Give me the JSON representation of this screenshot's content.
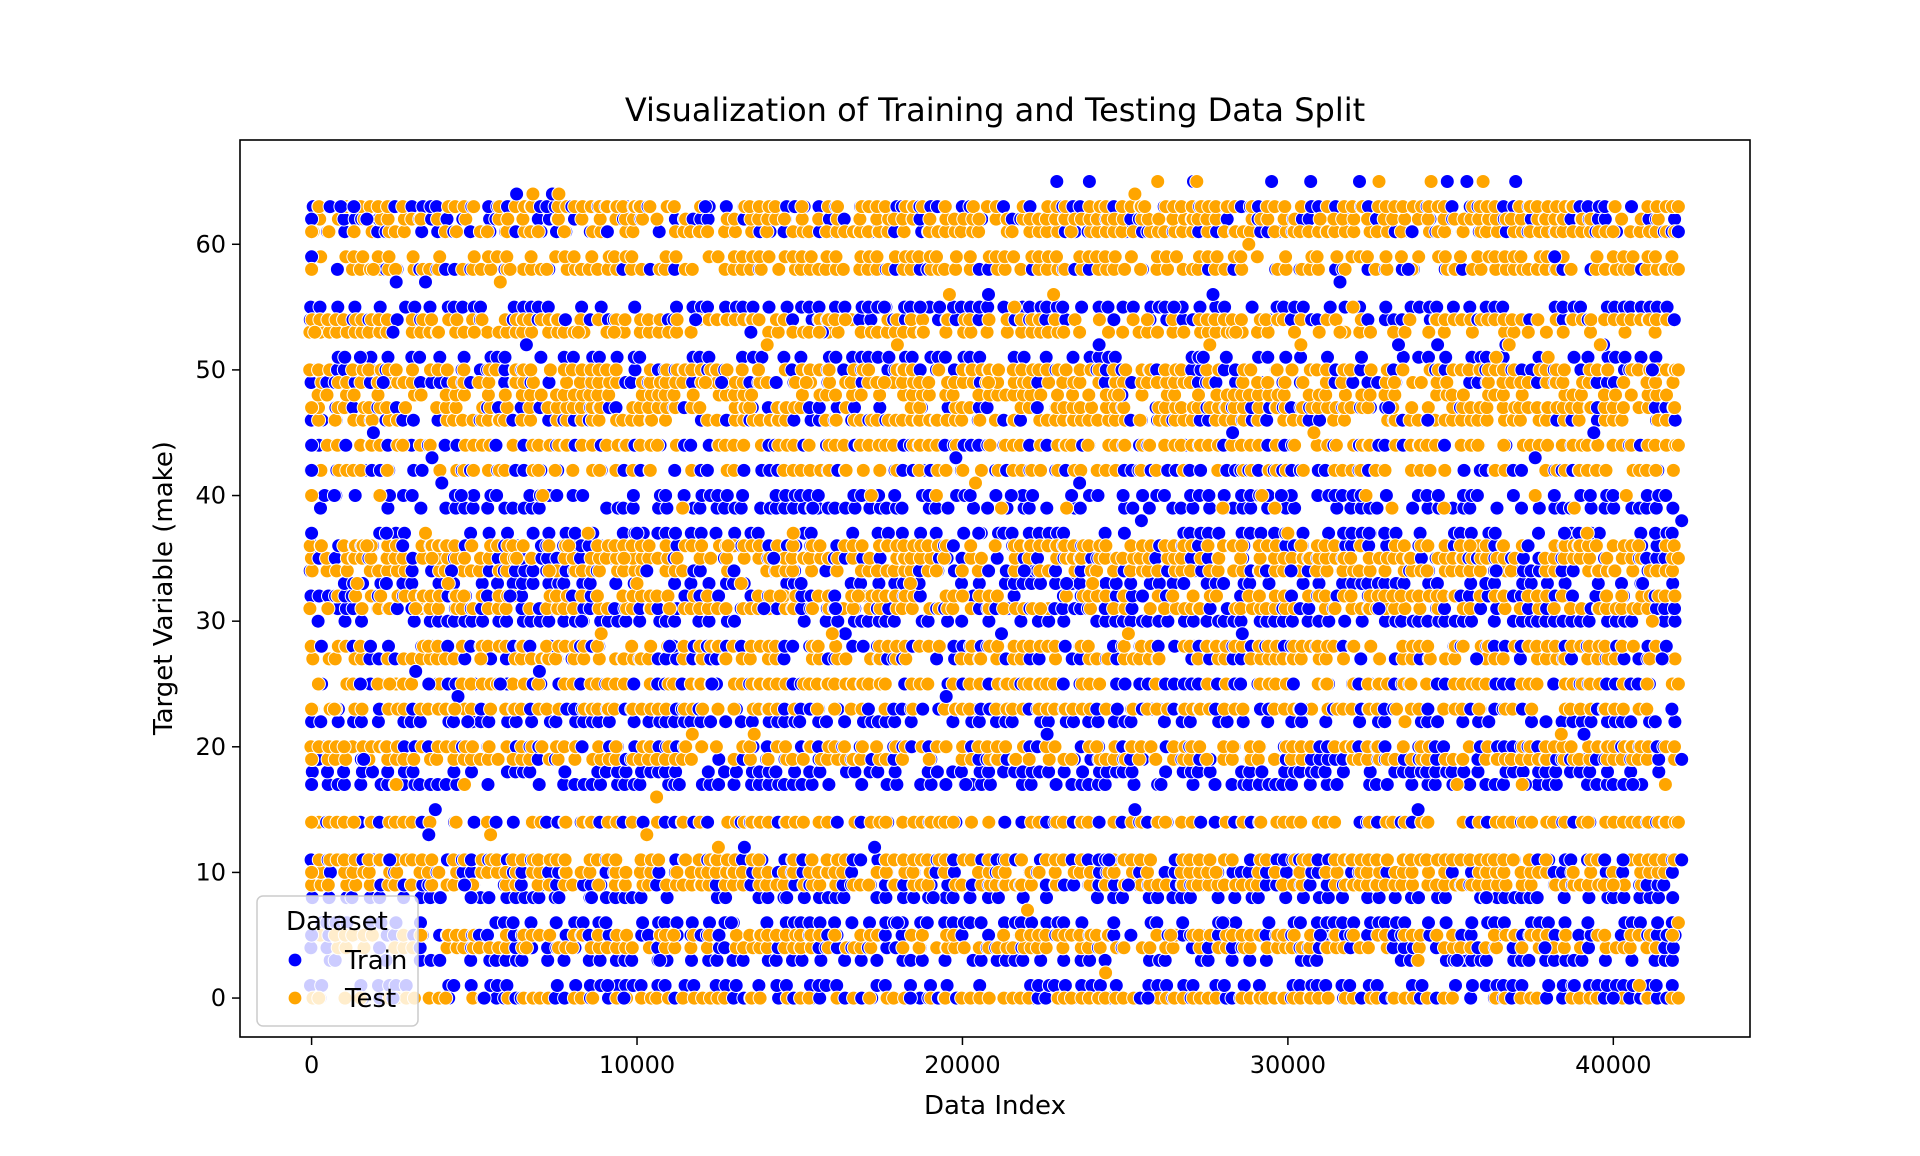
{
  "chart_data": {
    "type": "scatter",
    "title": "Visualization of Training and Testing Data Split",
    "xlabel": "Data Index",
    "ylabel": "Target Variable (make)",
    "xlim": [
      -2200,
      44200
    ],
    "ylim": [
      -3.1,
      68.3
    ],
    "xticks": [
      0,
      10000,
      20000,
      30000,
      40000
    ],
    "xtick_labels": [
      "0",
      "10000",
      "20000",
      "30000",
      "40000"
    ],
    "yticks": [
      0,
      10,
      20,
      30,
      40,
      50,
      60
    ],
    "ytick_labels": [
      "0",
      "10",
      "20",
      "30",
      "40",
      "50",
      "60"
    ],
    "grid": false,
    "legend": {
      "title": "Dataset",
      "position": "lower-left",
      "entries": [
        "Train",
        "Test"
      ]
    },
    "series": [
      {
        "name": "Train",
        "color": "#0000ff",
        "points": [
          [
            0,
            62
          ],
          [
            0,
            59
          ],
          [
            0,
            47
          ],
          [
            0,
            44
          ],
          [
            0,
            42
          ],
          [
            0,
            37
          ],
          [
            0,
            17
          ],
          [
            0,
            19
          ],
          [
            0,
            10
          ],
          [
            0,
            5
          ],
          [
            200,
            30
          ],
          [
            300,
            28
          ],
          [
            400,
            40
          ],
          [
            700,
            40
          ],
          [
            900,
            63
          ],
          [
            1300,
            63
          ],
          [
            1500,
            51
          ],
          [
            1500,
            25
          ],
          [
            1600,
            19
          ],
          [
            1700,
            62
          ],
          [
            1900,
            45
          ],
          [
            2200,
            49
          ],
          [
            2300,
            37
          ],
          [
            2300,
            33
          ],
          [
            2400,
            11
          ],
          [
            2500,
            53
          ],
          [
            2500,
            0
          ],
          [
            2600,
            57
          ],
          [
            2800,
            36
          ],
          [
            3200,
            26
          ],
          [
            3500,
            57
          ],
          [
            3600,
            25
          ],
          [
            3600,
            13
          ],
          [
            3700,
            43
          ],
          [
            3800,
            15
          ],
          [
            4000,
            41
          ],
          [
            4300,
            34
          ],
          [
            4500,
            24
          ],
          [
            4600,
            40
          ],
          [
            4700,
            9
          ],
          [
            4800,
            22
          ],
          [
            4900,
            8
          ],
          [
            5300,
            0
          ],
          [
            5500,
            27
          ],
          [
            5800,
            25
          ],
          [
            6100,
            32
          ],
          [
            6300,
            64
          ],
          [
            6600,
            52
          ],
          [
            6800,
            64
          ],
          [
            7000,
            26
          ],
          [
            7400,
            64
          ],
          [
            7600,
            8
          ],
          [
            7800,
            54
          ],
          [
            8300,
            30
          ],
          [
            8600,
            8
          ],
          [
            9100,
            1
          ],
          [
            9600,
            0
          ],
          [
            10000,
            37
          ],
          [
            10300,
            34
          ],
          [
            10700,
            3
          ],
          [
            11000,
            28
          ],
          [
            11300,
            17
          ],
          [
            11800,
            54
          ],
          [
            12100,
            63
          ],
          [
            12300,
            25
          ],
          [
            12600,
            49
          ],
          [
            12900,
            6
          ],
          [
            13300,
            12
          ],
          [
            13500,
            53
          ],
          [
            13900,
            31
          ],
          [
            14200,
            35
          ],
          [
            14600,
            8
          ],
          [
            15000,
            22
          ],
          [
            15400,
            39
          ],
          [
            15700,
            53
          ],
          [
            16100,
            31
          ],
          [
            16400,
            29
          ],
          [
            16900,
            40
          ],
          [
            17300,
            12
          ],
          [
            17600,
            55
          ],
          [
            18000,
            6
          ],
          [
            18400,
            0
          ],
          [
            18700,
            55
          ],
          [
            19100,
            8
          ],
          [
            19500,
            24
          ],
          [
            19800,
            43
          ],
          [
            20100,
            17
          ],
          [
            20500,
            37
          ],
          [
            20800,
            56
          ],
          [
            21200,
            29
          ],
          [
            21500,
            40
          ],
          [
            21900,
            34
          ],
          [
            22300,
            47
          ],
          [
            22600,
            21
          ],
          [
            22900,
            65
          ],
          [
            23200,
            33
          ],
          [
            23600,
            41
          ],
          [
            23900,
            65
          ],
          [
            24200,
            52
          ],
          [
            24500,
            11
          ],
          [
            24900,
            48
          ],
          [
            25100,
            9
          ],
          [
            25300,
            15
          ],
          [
            25500,
            38
          ],
          [
            25700,
            0
          ],
          [
            26100,
            17
          ],
          [
            26500,
            55
          ],
          [
            26800,
            33
          ],
          [
            27100,
            65
          ],
          [
            27400,
            51
          ],
          [
            27700,
            56
          ],
          [
            28000,
            6
          ],
          [
            28300,
            45
          ],
          [
            28600,
            29
          ],
          [
            28900,
            55
          ],
          [
            29200,
            18
          ],
          [
            29500,
            65
          ],
          [
            29800,
            40
          ],
          [
            30100,
            34
          ],
          [
            30400,
            23
          ],
          [
            30700,
            65
          ],
          [
            31000,
            5
          ],
          [
            31300,
            55
          ],
          [
            31600,
            57
          ],
          [
            31900,
            1
          ],
          [
            32200,
            65
          ],
          [
            32500,
            37
          ],
          [
            32800,
            31
          ],
          [
            33100,
            47
          ],
          [
            33400,
            52
          ],
          [
            33700,
            58
          ],
          [
            34000,
            15
          ],
          [
            34300,
            46
          ],
          [
            34600,
            52
          ],
          [
            34900,
            65
          ],
          [
            35200,
            3
          ],
          [
            35500,
            65
          ],
          [
            35800,
            27
          ],
          [
            36100,
            8
          ],
          [
            36400,
            34
          ],
          [
            36700,
            52
          ],
          [
            37000,
            65
          ],
          [
            37300,
            17
          ],
          [
            37600,
            43
          ],
          [
            37900,
            4
          ],
          [
            38200,
            59
          ],
          [
            38500,
            37
          ],
          [
            38800,
            1
          ],
          [
            39100,
            21
          ],
          [
            39400,
            45
          ],
          [
            39700,
            52
          ],
          [
            40000,
            0
          ],
          [
            40300,
            11
          ],
          [
            40600,
            17
          ],
          [
            40900,
            33
          ],
          [
            41200,
            50
          ],
          [
            41500,
            27
          ],
          [
            41800,
            23
          ],
          [
            42000,
            61
          ],
          [
            42100,
            38
          ],
          [
            42100,
            19
          ],
          [
            42100,
            11
          ]
        ]
      },
      {
        "name": "Test",
        "color": "#ffa500",
        "points": [
          [
            0,
            61
          ],
          [
            0,
            58
          ],
          [
            0,
            47
          ],
          [
            0,
            40
          ],
          [
            0,
            23
          ],
          [
            0,
            19
          ],
          [
            0,
            14
          ],
          [
            0,
            10
          ],
          [
            100,
            53
          ],
          [
            300,
            36
          ],
          [
            500,
            31
          ],
          [
            700,
            23
          ],
          [
            1000,
            20
          ],
          [
            1300,
            14
          ],
          [
            1400,
            33
          ],
          [
            1700,
            36
          ],
          [
            1900,
            58
          ],
          [
            2100,
            40
          ],
          [
            2400,
            25
          ],
          [
            2600,
            17
          ],
          [
            2800,
            44
          ],
          [
            3200,
            31
          ],
          [
            3500,
            37
          ],
          [
            3700,
            35
          ],
          [
            3900,
            53
          ],
          [
            4200,
            33
          ],
          [
            4400,
            23
          ],
          [
            4700,
            17
          ],
          [
            5000,
            53
          ],
          [
            5200,
            27
          ],
          [
            5500,
            13
          ],
          [
            5800,
            57
          ],
          [
            6100,
            58
          ],
          [
            6300,
            35
          ],
          [
            6600,
            4
          ],
          [
            6800,
            64
          ],
          [
            7100,
            40
          ],
          [
            7300,
            34
          ],
          [
            7600,
            64
          ],
          [
            7900,
            36
          ],
          [
            8200,
            53
          ],
          [
            8500,
            37
          ],
          [
            8900,
            29
          ],
          [
            9300,
            53
          ],
          [
            9600,
            35
          ],
          [
            10000,
            33
          ],
          [
            10300,
            13
          ],
          [
            10600,
            16
          ],
          [
            11000,
            31
          ],
          [
            11400,
            39
          ],
          [
            11700,
            21
          ],
          [
            12100,
            49
          ],
          [
            12500,
            12
          ],
          [
            12800,
            36
          ],
          [
            13200,
            33
          ],
          [
            13600,
            21
          ],
          [
            14000,
            52
          ],
          [
            14400,
            32
          ],
          [
            14800,
            37
          ],
          [
            15200,
            49
          ],
          [
            15600,
            53
          ],
          [
            16000,
            29
          ],
          [
            16400,
            54
          ],
          [
            16800,
            32
          ],
          [
            17200,
            40
          ],
          [
            17600,
            49
          ],
          [
            18000,
            52
          ],
          [
            18400,
            33
          ],
          [
            18800,
            53
          ],
          [
            19200,
            40
          ],
          [
            19600,
            56
          ],
          [
            20000,
            32
          ],
          [
            20400,
            41
          ],
          [
            20800,
            49
          ],
          [
            21200,
            39
          ],
          [
            21600,
            55
          ],
          [
            22000,
            7
          ],
          [
            22400,
            31
          ],
          [
            22800,
            56
          ],
          [
            23200,
            39
          ],
          [
            23600,
            53
          ],
          [
            24000,
            33
          ],
          [
            24400,
            2
          ],
          [
            24800,
            48
          ],
          [
            25100,
            29
          ],
          [
            25300,
            64
          ],
          [
            25600,
            63
          ],
          [
            26000,
            65
          ],
          [
            26400,
            5
          ],
          [
            26800,
            53
          ],
          [
            27200,
            65
          ],
          [
            27600,
            52
          ],
          [
            28000,
            39
          ],
          [
            28400,
            53
          ],
          [
            28800,
            60
          ],
          [
            29200,
            40
          ],
          [
            29600,
            39
          ],
          [
            30000,
            37
          ],
          [
            30400,
            52
          ],
          [
            30800,
            45
          ],
          [
            31200,
            25
          ],
          [
            31600,
            53
          ],
          [
            32000,
            55
          ],
          [
            32400,
            40
          ],
          [
            32800,
            65
          ],
          [
            33200,
            39
          ],
          [
            33600,
            22
          ],
          [
            34000,
            3
          ],
          [
            34400,
            65
          ],
          [
            34800,
            39
          ],
          [
            35200,
            17
          ],
          [
            35600,
            36
          ],
          [
            36000,
            65
          ],
          [
            36400,
            51
          ],
          [
            36800,
            52
          ],
          [
            37200,
            17
          ],
          [
            37600,
            40
          ],
          [
            38000,
            51
          ],
          [
            38400,
            21
          ],
          [
            38800,
            39
          ],
          [
            39200,
            37
          ],
          [
            39600,
            52
          ],
          [
            40000,
            9
          ],
          [
            40400,
            40
          ],
          [
            40800,
            1
          ],
          [
            41200,
            30
          ],
          [
            41600,
            17
          ],
          [
            42000,
            63
          ],
          [
            42000,
            58
          ],
          [
            42000,
            50
          ],
          [
            42000,
            44
          ],
          [
            42000,
            35
          ],
          [
            42000,
            25
          ],
          [
            42000,
            14
          ],
          [
            42000,
            6
          ],
          [
            42000,
            0
          ]
        ]
      }
    ],
    "bands": {
      "train_levels": [
        0,
        1,
        3,
        4,
        5,
        6,
        8,
        9,
        10,
        11,
        14,
        17,
        18,
        19,
        20,
        22,
        23,
        25,
        27,
        28,
        30,
        31,
        32,
        33,
        34,
        35,
        36,
        37,
        39,
        40,
        42,
        44,
        46,
        47,
        49,
        50,
        51,
        54,
        55,
        58,
        61,
        62,
        63
      ],
      "test_levels": [
        0,
        4,
        5,
        9,
        10,
        11,
        14,
        19,
        20,
        23,
        25,
        27,
        28,
        31,
        32,
        34,
        35,
        36,
        42,
        44,
        46,
        47,
        48,
        49,
        50,
        53,
        54,
        58,
        59,
        61,
        62,
        63
      ],
      "x_start": 0,
      "x_end": 42100,
      "x_step": 260
    }
  }
}
